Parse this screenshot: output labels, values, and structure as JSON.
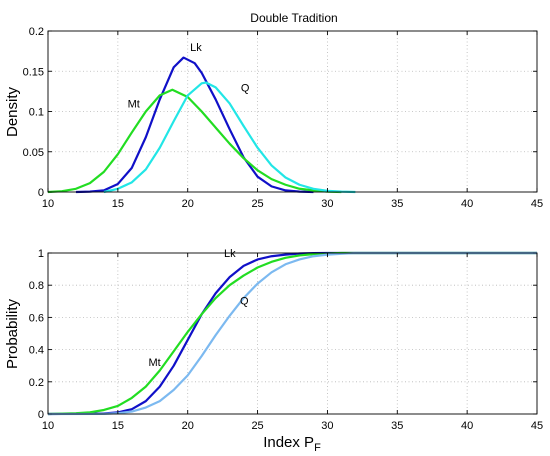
{
  "chart_data": [
    {
      "type": "line",
      "title": "Double Tradition",
      "xlabel": "",
      "ylabel": "Density",
      "xlim": [
        10,
        45
      ],
      "ylim": [
        0,
        0.2
      ],
      "xticks": [
        10,
        15,
        20,
        25,
        30,
        35,
        40,
        45
      ],
      "yticks": [
        0,
        0.05,
        0.1,
        0.15,
        0.2
      ],
      "ytick_labels": [
        "0",
        "0.05",
        "0.1",
        "0.15",
        "0.2"
      ],
      "grid": true,
      "series": [
        {
          "name": "Lk",
          "color": "#1010c8",
          "x": [
            12,
            13,
            14,
            15,
            16,
            17,
            18,
            19,
            19.7,
            20.5,
            21,
            22,
            23,
            24,
            25,
            26,
            27,
            28,
            29
          ],
          "y": [
            0,
            0.0005,
            0.002,
            0.01,
            0.03,
            0.068,
            0.115,
            0.155,
            0.167,
            0.16,
            0.148,
            0.115,
            0.078,
            0.043,
            0.019,
            0.007,
            0.002,
            0.0005,
            0
          ]
        },
        {
          "name": "Mt",
          "color": "#22dd22",
          "x": [
            10,
            11,
            12,
            13,
            14,
            15,
            16,
            17,
            18,
            18.9,
            20,
            21,
            22,
            23,
            24,
            25,
            26,
            27,
            28,
            29,
            30,
            31
          ],
          "y": [
            0,
            0.001,
            0.004,
            0.011,
            0.025,
            0.047,
            0.074,
            0.1,
            0.12,
            0.127,
            0.118,
            0.1,
            0.08,
            0.06,
            0.042,
            0.027,
            0.016,
            0.009,
            0.004,
            0.002,
            0.0005,
            0
          ]
        },
        {
          "name": "Q",
          "color": "#22e6e6",
          "x": [
            14,
            15,
            16,
            17,
            18,
            19,
            20,
            21,
            21.3,
            22,
            23,
            24,
            25,
            26,
            27,
            28,
            29,
            30,
            31,
            32
          ],
          "y": [
            0,
            0.004,
            0.012,
            0.028,
            0.055,
            0.088,
            0.12,
            0.135,
            0.136,
            0.13,
            0.11,
            0.082,
            0.055,
            0.033,
            0.018,
            0.009,
            0.004,
            0.0015,
            0.0005,
            0
          ]
        }
      ],
      "annotations": [
        "Lk",
        "Mt",
        "Q"
      ]
    },
    {
      "type": "line",
      "title": "",
      "xlabel": "Index P",
      "xlabel_subscript": "F",
      "ylabel": "Probability",
      "xlim": [
        10,
        45
      ],
      "ylim": [
        0,
        1
      ],
      "xticks": [
        10,
        15,
        20,
        25,
        30,
        35,
        40,
        45
      ],
      "yticks": [
        0,
        0.2,
        0.4,
        0.6,
        0.8,
        1
      ],
      "ytick_labels": [
        "0",
        "0.2",
        "0.4",
        "0.6",
        "0.8",
        "1"
      ],
      "grid": true,
      "series": [
        {
          "name": "Lk",
          "color": "#1010c8",
          "x": [
            10,
            14,
            15,
            16,
            17,
            18,
            19,
            20,
            21,
            22,
            23,
            24,
            25,
            26,
            27,
            28,
            29,
            30,
            45
          ],
          "y": [
            0,
            0.003,
            0.01,
            0.03,
            0.08,
            0.17,
            0.3,
            0.46,
            0.62,
            0.75,
            0.85,
            0.92,
            0.96,
            0.98,
            0.99,
            0.997,
            0.999,
            1,
            1
          ]
        },
        {
          "name": "Mt",
          "color": "#22dd22",
          "x": [
            10,
            12,
            13,
            14,
            15,
            16,
            17,
            18,
            19,
            20,
            21,
            22,
            23,
            24,
            25,
            26,
            27,
            28,
            29,
            30,
            31,
            45
          ],
          "y": [
            0,
            0.005,
            0.01,
            0.025,
            0.05,
            0.1,
            0.17,
            0.27,
            0.39,
            0.51,
            0.62,
            0.72,
            0.8,
            0.86,
            0.91,
            0.945,
            0.97,
            0.985,
            0.993,
            0.997,
            1,
            1
          ]
        },
        {
          "name": "Q",
          "color": "#7cb9f0",
          "x": [
            10,
            14,
            15,
            16,
            17,
            18,
            19,
            20,
            21,
            22,
            23,
            24,
            25,
            26,
            27,
            28,
            29,
            30,
            31,
            32,
            45
          ],
          "y": [
            0,
            0.001,
            0.005,
            0.015,
            0.04,
            0.08,
            0.15,
            0.24,
            0.36,
            0.49,
            0.61,
            0.72,
            0.81,
            0.88,
            0.93,
            0.96,
            0.98,
            0.99,
            0.995,
            1,
            1
          ]
        }
      ],
      "annotations": [
        "Lk",
        "Mt",
        "Q"
      ]
    }
  ]
}
